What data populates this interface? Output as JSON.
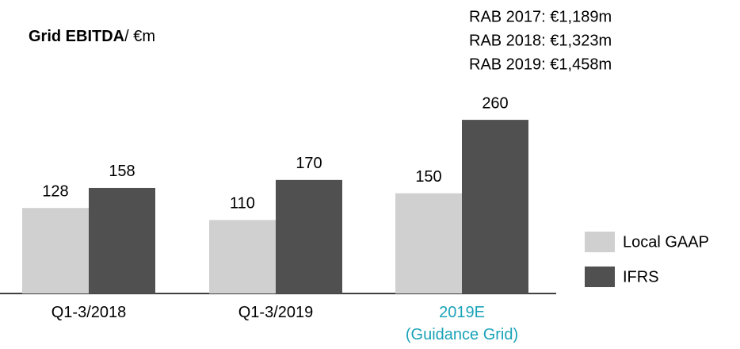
{
  "chart_data": {
    "type": "bar",
    "title": "Grid EBITDA",
    "title_unit": "/ €m",
    "annotations": [
      "RAB 2017: €1,189m",
      "RAB 2018: €1,323m",
      "RAB 2019: €1,458m"
    ],
    "categories": [
      "Q1-3/2018",
      "Q1-3/2019",
      "2019E\n(Guidance Grid)"
    ],
    "category_colors": [
      "#000000",
      "#000000",
      "#1aa3b8"
    ],
    "series": [
      {
        "name": "Local GAAP",
        "color": "#d0d0d0",
        "values": [
          128,
          110,
          150
        ]
      },
      {
        "name": "IFRS",
        "color": "#505050",
        "values": [
          158,
          170,
          260
        ]
      }
    ],
    "legend": "right"
  }
}
